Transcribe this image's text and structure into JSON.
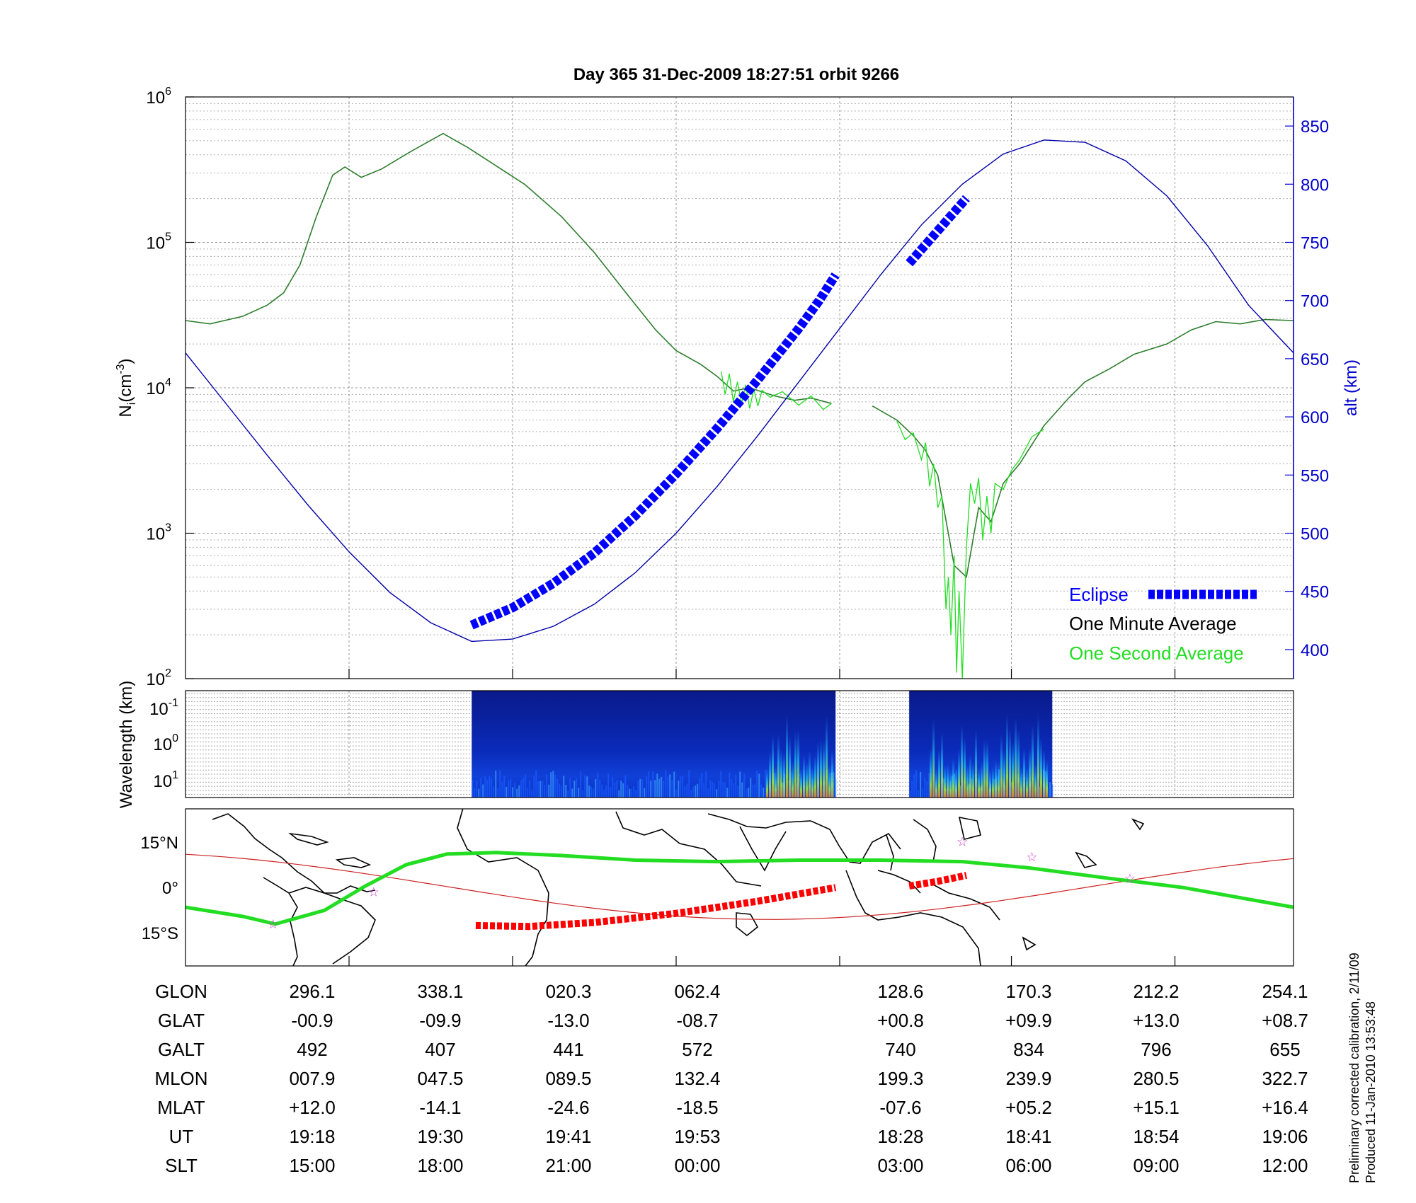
{
  "chart_data": [
    {
      "type": "line",
      "title": "Day 365  31-Dec-2009 18:27:51    orbit 9266",
      "ylabel": "N",
      "ylabel_sub": "i",
      "ylabel_unit": "(cm",
      "ylabel_exp": "-3",
      "ylabel_close": ")",
      "yscale": "log",
      "ylim": [
        100,
        1000000
      ],
      "yticks": [
        {
          "base": "10",
          "exp": "2",
          "value": 100
        },
        {
          "base": "10",
          "exp": "3",
          "value": 1000
        },
        {
          "base": "10",
          "exp": "4",
          "value": 10000
        },
        {
          "base": "10",
          "exp": "5",
          "value": 100000
        },
        {
          "base": "10",
          "exp": "6",
          "value": 1000000
        }
      ],
      "y2label": "alt (km)",
      "y2lim": [
        375,
        875
      ],
      "y2ticks": [
        "400",
        "450",
        "500",
        "550",
        "600",
        "650",
        "700",
        "750",
        "800",
        "850"
      ],
      "y2color": "#0000cc",
      "grid": true,
      "legend_position": "bottom-right",
      "legend": [
        {
          "label": "Eclipse",
          "color": "#0000ff"
        },
        {
          "label": "One Minute Average",
          "color": "#000000"
        },
        {
          "label": "One Second Average",
          "color": "#22dd22"
        }
      ],
      "series": [
        {
          "name": "One Minute Average",
          "color": "#2e7d2e",
          "points": [
            [
              0,
              29000
            ],
            [
              0.3,
              27500
            ],
            [
              0.7,
              31000
            ],
            [
              1,
              37000
            ],
            [
              1.2,
              45000
            ],
            [
              1.4,
              70000
            ],
            [
              1.6,
              150000
            ],
            [
              1.8,
              290000
            ],
            [
              1.95,
              330000
            ],
            [
              2.15,
              280000
            ],
            [
              2.4,
              320000
            ],
            [
              2.75,
              420000
            ],
            [
              3.15,
              560000
            ],
            [
              3.45,
              450000
            ],
            [
              3.75,
              350000
            ],
            [
              4.15,
              250000
            ],
            [
              4.6,
              150000
            ],
            [
              5,
              85000
            ],
            [
              5.4,
              44000
            ],
            [
              5.75,
              25000
            ],
            [
              6,
              18000
            ],
            [
              6.3,
              14500
            ],
            [
              6.5,
              12000
            ],
            [
              6.7,
              9500
            ],
            [
              6.9,
              10000
            ],
            [
              7.2,
              8800
            ],
            [
              7.45,
              8200
            ],
            [
              7.65,
              8500
            ],
            [
              7.9,
              7800
            ],
            [
              8.4,
              7500
            ],
            [
              8.7,
              6000
            ],
            [
              8.9,
              4700
            ],
            [
              9.05,
              3700
            ],
            [
              9.2,
              2500
            ],
            [
              9.4,
              600
            ],
            [
              9.55,
              500
            ],
            [
              9.7,
              1500
            ],
            [
              9.85,
              1200
            ],
            [
              10,
              2200
            ],
            [
              10.2,
              3000
            ],
            [
              10.5,
              5500
            ],
            [
              10.8,
              8500
            ],
            [
              11,
              11000
            ],
            [
              11.3,
              13500
            ],
            [
              11.6,
              17000
            ],
            [
              12,
              20000
            ],
            [
              12.3,
              25000
            ],
            [
              12.6,
              28500
            ],
            [
              12.9,
              27500
            ],
            [
              13.2,
              29500
            ],
            [
              13.55,
              29000
            ]
          ],
          "gap_after_x": 7.9
        },
        {
          "name": "One Second Average",
          "color": "#22dd22",
          "points": [
            [
              6.55,
              13000
            ],
            [
              6.6,
              9000
            ],
            [
              6.65,
              12500
            ],
            [
              6.7,
              8000
            ],
            [
              6.75,
              11000
            ],
            [
              6.8,
              7800
            ],
            [
              6.85,
              10500
            ],
            [
              6.9,
              7200
            ],
            [
              6.95,
              9800
            ],
            [
              7.0,
              7500
            ],
            [
              7.05,
              9600
            ],
            [
              7.15,
              8600
            ],
            [
              7.3,
              9400
            ],
            [
              7.5,
              7600
            ],
            [
              7.65,
              8800
            ],
            [
              7.8,
              7100
            ],
            [
              7.9,
              7800
            ],
            [
              8.7,
              5900
            ],
            [
              8.8,
              4400
            ],
            [
              8.9,
              4900
            ],
            [
              9.0,
              3200
            ],
            [
              9.05,
              4200
            ],
            [
              9.1,
              2100
            ],
            [
              9.15,
              3000
            ],
            [
              9.2,
              1500
            ],
            [
              9.25,
              1800
            ],
            [
              9.3,
              300
            ],
            [
              9.33,
              500
            ],
            [
              9.36,
              200
            ],
            [
              9.4,
              700
            ],
            [
              9.43,
              110
            ],
            [
              9.46,
              400
            ],
            [
              9.5,
              100
            ],
            [
              9.55,
              800
            ],
            [
              9.6,
              2200
            ],
            [
              9.65,
              1600
            ],
            [
              9.7,
              2400
            ],
            [
              9.75,
              900
            ],
            [
              9.8,
              1800
            ],
            [
              9.85,
              1000
            ],
            [
              9.9,
              2200
            ],
            [
              10.0,
              2000
            ],
            [
              10.1,
              2700
            ],
            [
              10.2,
              3200
            ],
            [
              10.35,
              4600
            ],
            [
              10.5,
              5200
            ]
          ],
          "gap_after_x": 7.9
        },
        {
          "name": "alt",
          "axis": "y2",
          "color": "#0000aa",
          "points": [
            [
              0,
              655
            ],
            [
              0.5,
              611
            ],
            [
              1,
              567
            ],
            [
              1.5,
              524
            ],
            [
              2,
              484
            ],
            [
              2.5,
              449
            ],
            [
              3,
              423
            ],
            [
              3.5,
              407
            ],
            [
              4,
              409
            ],
            [
              4.5,
              420
            ],
            [
              5,
              439
            ],
            [
              5.5,
              466
            ],
            [
              6,
              500
            ],
            [
              6.5,
              540
            ],
            [
              7,
              584
            ],
            [
              7.5,
              630
            ],
            [
              8,
              676
            ],
            [
              8.5,
              722
            ],
            [
              9,
              765
            ],
            [
              9.5,
              800
            ],
            [
              10,
              826
            ],
            [
              10.5,
              838
            ],
            [
              11,
              836
            ],
            [
              11.5,
              820
            ],
            [
              12,
              790
            ],
            [
              12.5,
              747
            ],
            [
              13,
              696
            ],
            [
              13.55,
              655
            ]
          ]
        },
        {
          "name": "Eclipse",
          "axis": "y2",
          "color": "#0000ff",
          "segments": [
            [
              [
                3.5,
                421
              ],
              [
                4,
                436
              ],
              [
                4.5,
                457
              ],
              [
                5,
                483
              ],
              [
                5.5,
                515
              ],
              [
                6,
                551
              ],
              [
                6.5,
                590
              ],
              [
                7,
                632
              ],
              [
                7.5,
                676
              ],
              [
                7.75,
                700
              ],
              [
                7.95,
                722
              ]
            ],
            [
              [
                8.85,
                732
              ],
              [
                9.2,
                760
              ],
              [
                9.55,
                788
              ]
            ]
          ]
        }
      ]
    },
    {
      "type": "heatmap",
      "ylabel": "Wavelength (km)",
      "yscale": "log",
      "yticks": [
        {
          "base": "10",
          "exp": "-1"
        },
        {
          "base": "10",
          "exp": "0"
        },
        {
          "base": "10",
          "exp": "1"
        }
      ],
      "blocks": [
        {
          "x_start": 3.5,
          "x_end": 7.95
        },
        {
          "x_start": 8.85,
          "x_end": 10.6
        }
      ]
    },
    {
      "type": "line",
      "map": "world coastlines",
      "yticks": [
        "15°N",
        "0°",
        "15°S"
      ],
      "series": [
        {
          "name": "geographic track",
          "color": "#22dd22"
        },
        {
          "name": "magnetic equator",
          "color": "#cc2222"
        },
        {
          "name": "eclipse track",
          "color": "#ff0000"
        }
      ]
    }
  ],
  "table": {
    "row_labels": [
      "GLON",
      "GLAT",
      "GALT",
      "MLON",
      "MLAT",
      "UT",
      "SLT"
    ],
    "columns": [
      [
        "296.1",
        "-00.9",
        "492",
        "007.9",
        "+12.0",
        "19:18",
        "15:00"
      ],
      [
        "338.1",
        "-09.9",
        "407",
        "047.5",
        "-14.1",
        "19:30",
        "18:00"
      ],
      [
        "020.3",
        "-13.0",
        "441",
        "089.5",
        "-24.6",
        "19:41",
        "21:00"
      ],
      [
        "062.4",
        "-08.7",
        "572",
        "132.4",
        "-18.5",
        "19:53",
        "00:00"
      ],
      [
        "128.6",
        "+00.8",
        "740",
        "199.3",
        "-07.6",
        "18:28",
        "03:00"
      ],
      [
        "170.3",
        "+09.9",
        "834",
        "239.9",
        "+05.2",
        "18:41",
        "06:00"
      ],
      [
        "212.2",
        "+13.0",
        "796",
        "280.5",
        "+15.1",
        "18:54",
        "09:00"
      ],
      [
        "254.1",
        "+08.7",
        "655",
        "322.7",
        "+16.4",
        "19:06",
        "12:00"
      ]
    ]
  },
  "footer": {
    "line1": "Preliminary corrected calibration, 2/11/09",
    "line2": "Produced 11-Jan-2010 13:53:48"
  }
}
